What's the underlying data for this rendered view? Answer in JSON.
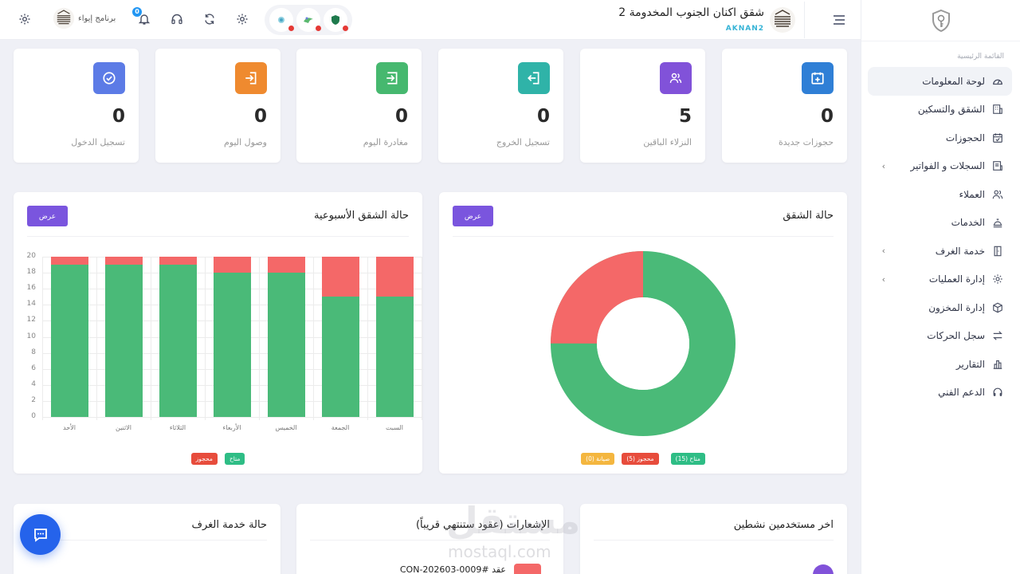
{
  "sidebar": {
    "section_label": "القائمة الرئيسية",
    "items": [
      {
        "label": "لوحة المعلومات",
        "icon": "dashboard-icon",
        "active": true,
        "chevron": false
      },
      {
        "label": "الشقق والتسكين",
        "icon": "building-icon",
        "chevron": false
      },
      {
        "label": "الحجوزات",
        "icon": "calendar-check-icon",
        "chevron": false
      },
      {
        "label": "السجلات و الفواتير",
        "icon": "invoice-icon",
        "chevron": true
      },
      {
        "label": "العملاء",
        "icon": "users-icon",
        "chevron": false
      },
      {
        "label": "الخدمات",
        "icon": "service-icon",
        "chevron": false
      },
      {
        "label": "خدمة الغرف",
        "icon": "door-icon",
        "chevron": true
      },
      {
        "label": "إدارة العمليات",
        "icon": "gear-icon",
        "chevron": true
      },
      {
        "label": "إدارة المخزون",
        "icon": "box-icon",
        "chevron": false
      },
      {
        "label": "سجل الحركات",
        "icon": "arrows-exchange-icon",
        "chevron": false
      },
      {
        "label": "التقارير",
        "icon": "bar-chart-icon",
        "chevron": false
      },
      {
        "label": "الدعم الفني",
        "icon": "headset-icon",
        "chevron": false
      }
    ]
  },
  "header": {
    "hotel_name": "شقق اكنان الجنوب المخدومة 2",
    "hotel_code": "AKNAN2",
    "brand_label": "برنامج إيواء",
    "notification_count": "0"
  },
  "stats": [
    {
      "label": "حجوزات جديدة",
      "value": "0",
      "color": "#2f7fd6",
      "icon": "calendar-plus-icon"
    },
    {
      "label": "النزلاء الباقين",
      "value": "5",
      "color": "#8152d9",
      "icon": "users-icon"
    },
    {
      "label": "تسجيل الخروج",
      "value": "0",
      "color": "#2fb3a8",
      "icon": "logout-icon"
    },
    {
      "label": "مغادرة اليوم",
      "value": "0",
      "color": "#46b86f",
      "icon": "login-icon"
    },
    {
      "label": "وصول اليوم",
      "value": "0",
      "color": "#ef8a2f",
      "icon": "login-icon"
    },
    {
      "label": "تسجيل الدخول",
      "value": "0",
      "color": "#5c7be6",
      "icon": "check-circle-icon"
    }
  ],
  "apartment_status": {
    "title": "حالة الشقق",
    "view_button": "عرض",
    "legend": [
      {
        "label": "متاح (15)",
        "color": "#2ebd85"
      },
      {
        "label": "محجوز (5)",
        "color": "#e74c3c"
      },
      {
        "label": "صيانة (0)",
        "color": "#f4b63f"
      }
    ]
  },
  "weekly_status": {
    "title": "حالة الشقق الأسبوعية",
    "view_button": "عرض",
    "legend": [
      {
        "label": "متاح",
        "color": "#2ebd85"
      },
      {
        "label": "محجوز",
        "color": "#e74c3c"
      }
    ]
  },
  "bottom_panels": {
    "active_users": {
      "title": "اخر مستخدمين نشطين"
    },
    "notifications": {
      "title": "الإشعارات (عقود ستنتهي قريباً)",
      "first_item": "عقد #CON-202603-0009"
    },
    "room_service": {
      "title": "حالة خدمة الغرف"
    }
  },
  "watermark": {
    "arabic": "مستقل",
    "latin": "mostaql.com"
  },
  "chart_data": [
    {
      "type": "pie",
      "title": "حالة الشقق",
      "categories": [
        "متاح",
        "محجوز",
        "صيانة"
      ],
      "values": [
        15,
        5,
        0
      ],
      "colors": [
        "#4aba78",
        "#f46868",
        "#f4b63f"
      ],
      "donut": true
    },
    {
      "type": "bar",
      "stacked": true,
      "title": "حالة الشقق الأسبوعية",
      "categories": [
        "الأحد",
        "الاثنين",
        "الثلاثاء",
        "الأربعاء",
        "الخميس",
        "الجمعة",
        "السبت"
      ],
      "series": [
        {
          "name": "متاح",
          "values": [
            19,
            19,
            19,
            18,
            18,
            15,
            15
          ],
          "color": "#4aba78"
        },
        {
          "name": "محجوز",
          "values": [
            1,
            1,
            1,
            2,
            2,
            5,
            5
          ],
          "color": "#f46868"
        }
      ],
      "yticks": [
        0,
        2,
        4,
        6,
        8,
        10,
        12,
        14,
        16,
        18,
        20
      ],
      "ylim": [
        0,
        20
      ],
      "grid": true,
      "legend_position": "bottom"
    }
  ]
}
